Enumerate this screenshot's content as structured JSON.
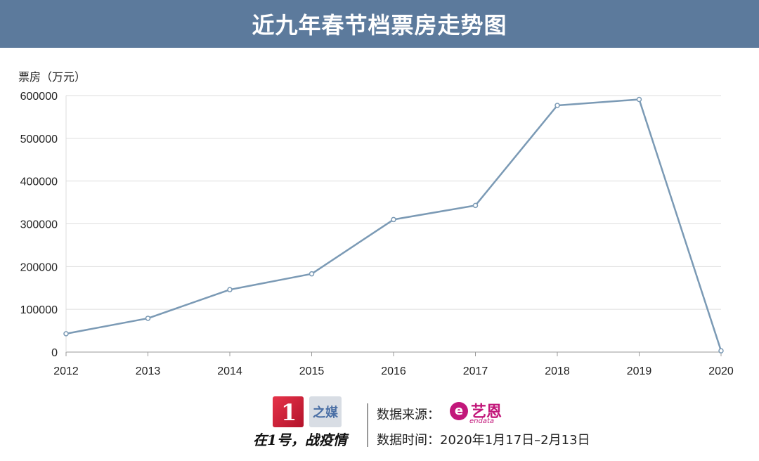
{
  "header": {
    "title": "近九年春节档票房走势图"
  },
  "chart_data": {
    "type": "line",
    "title": "近九年春节档票房走势图",
    "ylabel": "票房（万元）",
    "xlabel": "",
    "x": [
      "2012",
      "2013",
      "2014",
      "2015",
      "2016",
      "2017",
      "2018",
      "2019",
      "2020"
    ],
    "series": [
      {
        "values": [
          43000,
          79000,
          146000,
          183000,
          310000,
          343000,
          577000,
          591000,
          3000
        ]
      }
    ],
    "ylim": [
      0,
      600000
    ],
    "yticks": [
      "0",
      "100000",
      "200000",
      "300000",
      "400000",
      "500000",
      "600000"
    ],
    "grid": true,
    "line_color": "#7b9ab5"
  },
  "footer": {
    "brand_logo_text": "1",
    "brand_text": "之媒",
    "slogan": "在1号，战疫情",
    "source_label": "数据来源：",
    "source_logo_cn": "艺恩",
    "source_logo_en": "endata",
    "source_logo_icon": "e",
    "time_label": "数据时间：2020年1月17日–2月13日"
  }
}
